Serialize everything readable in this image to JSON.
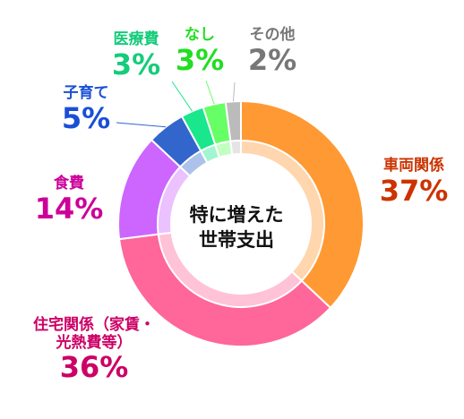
{
  "chart_data": {
    "type": "pie",
    "center_title": [
      "特に増えた",
      "世帯支出"
    ],
    "segments": [
      {
        "key": "car",
        "name": "車両関係",
        "display_name": [
          "車両関係"
        ],
        "value": 37,
        "label": "37%",
        "color": "#ff9933",
        "text_color": "#cc3300"
      },
      {
        "key": "housing",
        "name": "住宅関係（家賃・光熱費等）",
        "display_name": [
          "住宅関係（家賃・",
          "光熱費等）"
        ],
        "value": 36,
        "label": "36%",
        "color": "#ff6699",
        "text_color": "#cc0066"
      },
      {
        "key": "food",
        "name": "食費",
        "display_name": [
          "食費"
        ],
        "value": 14,
        "label": "14%",
        "color": "#cc66ff",
        "text_color": "#cc0099"
      },
      {
        "key": "childcare",
        "name": "子育て",
        "display_name": [
          "子育て"
        ],
        "value": 5,
        "label": "5%",
        "color": "#3366cc",
        "text_color": "#1a4fd6"
      },
      {
        "key": "medical",
        "name": "医療費",
        "display_name": [
          "医療費"
        ],
        "value": 3,
        "label": "3%",
        "color": "#1ae68c",
        "text_color": "#14cc7a"
      },
      {
        "key": "none",
        "name": "なし",
        "display_name": [
          "なし"
        ],
        "value": 3,
        "label": "3%",
        "color": "#66ff66",
        "text_color": "#22dd22"
      },
      {
        "key": "other",
        "name": "その他",
        "display_name": [
          "その他"
        ],
        "value": 2,
        "label": "2%",
        "color": "#bbbbbb",
        "text_color": "#777777"
      }
    ]
  }
}
